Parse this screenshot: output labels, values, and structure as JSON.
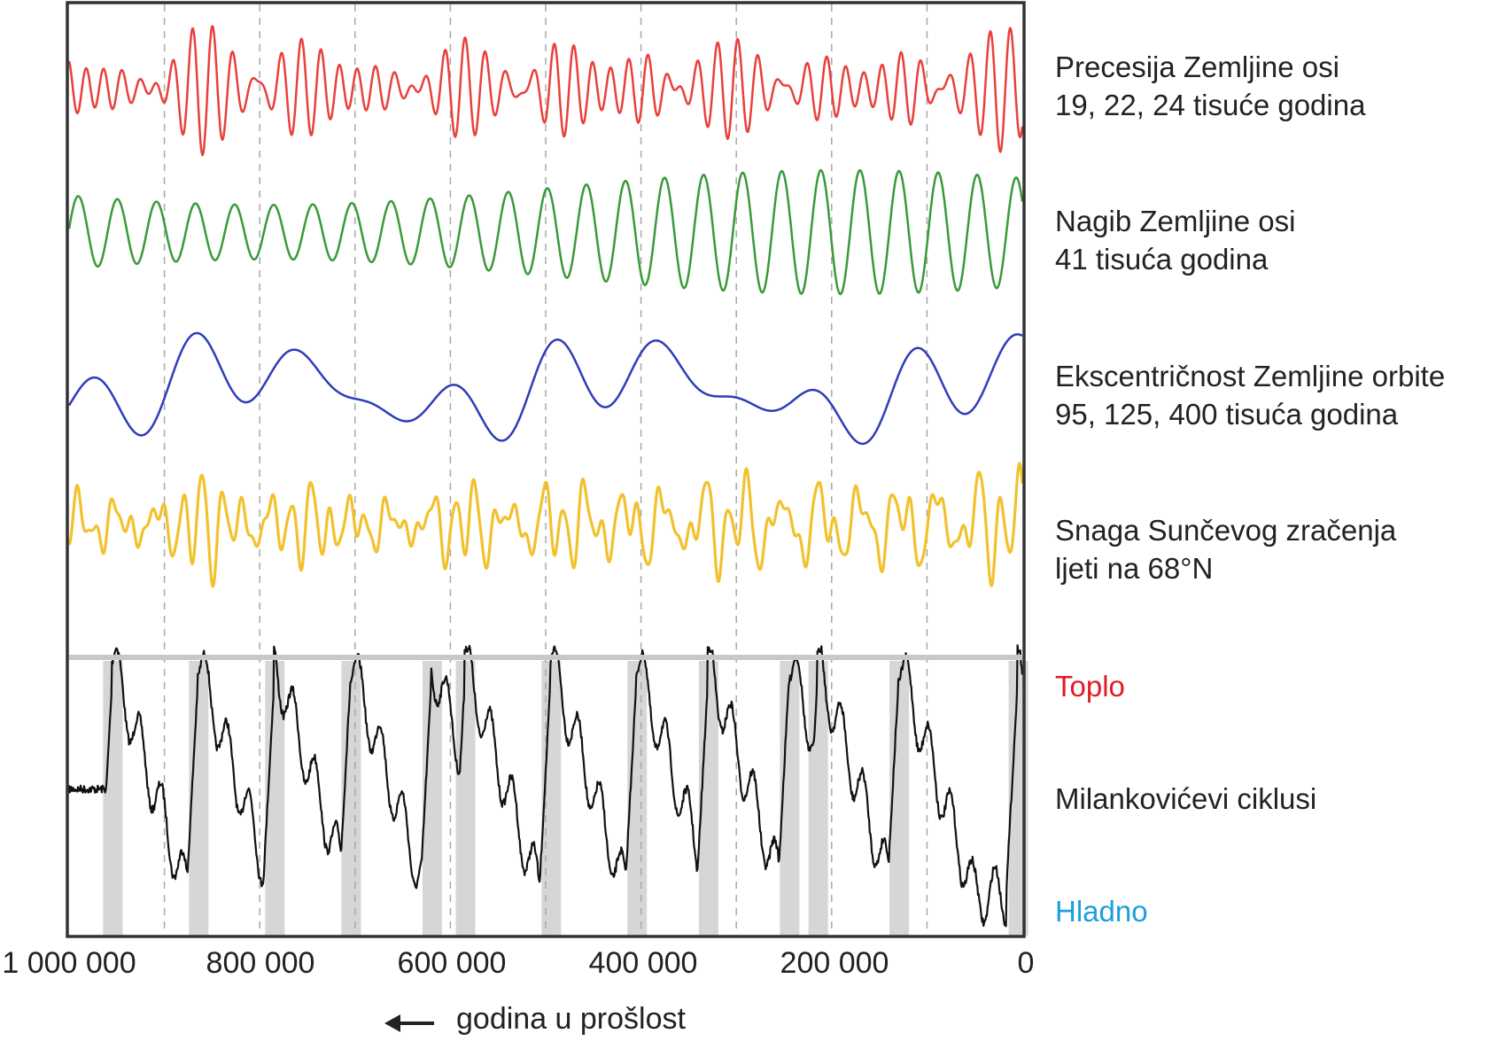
{
  "chart_data": {
    "type": "line",
    "xlabel": "godina u prošlost",
    "x_ticks": [
      {
        "value": 1000000,
        "label": "1 000 000"
      },
      {
        "value": 800000,
        "label": "800 000"
      },
      {
        "value": 600000,
        "label": "600 000"
      },
      {
        "value": 400000,
        "label": "400 000"
      },
      {
        "value": 200000,
        "label": "200 000"
      },
      {
        "value": 0,
        "label": "0"
      }
    ],
    "xlim": [
      1000000,
      0
    ],
    "x_direction": "reversed",
    "grid": "dashed vertical lines every 100 000 years",
    "series": [
      {
        "key": "precession",
        "line1": "Precesija Zemljine osi",
        "line2": "19, 22, 24 tisuće godina",
        "color": "#e8413c",
        "periods_kyr": [
          19,
          22,
          24
        ]
      },
      {
        "key": "obliquity",
        "line1": "Nagib Zemljine osi",
        "line2": "41 tisuća godina",
        "color": "#3a9a3a",
        "periods_kyr": [
          41
        ]
      },
      {
        "key": "eccentricity",
        "line1": "Ekscentričnost Zemljine orbite",
        "line2": "95, 125, 400 tisuća godina",
        "color": "#2e3db8",
        "periods_kyr": [
          95,
          125,
          400
        ]
      },
      {
        "key": "insolation",
        "line1": "Snaga Sunčevog zračenja",
        "line2": "ljeti na 68°N",
        "color": "#f2c12e"
      }
    ],
    "climate_panel": {
      "series_name": "Milankovićevi ciklusi",
      "color": "#111111",
      "warm_label": "Toplo",
      "warm_color": "#e21a23",
      "cold_label": "Hladno",
      "cold_color": "#1aa0dd",
      "shaded_color": "#d6d6d6",
      "warm_peaks_years_ago": [
        955000,
        865000,
        785000,
        705000,
        620000,
        585000,
        495000,
        405000,
        330000,
        245000,
        215000,
        130000,
        5000
      ]
    }
  }
}
